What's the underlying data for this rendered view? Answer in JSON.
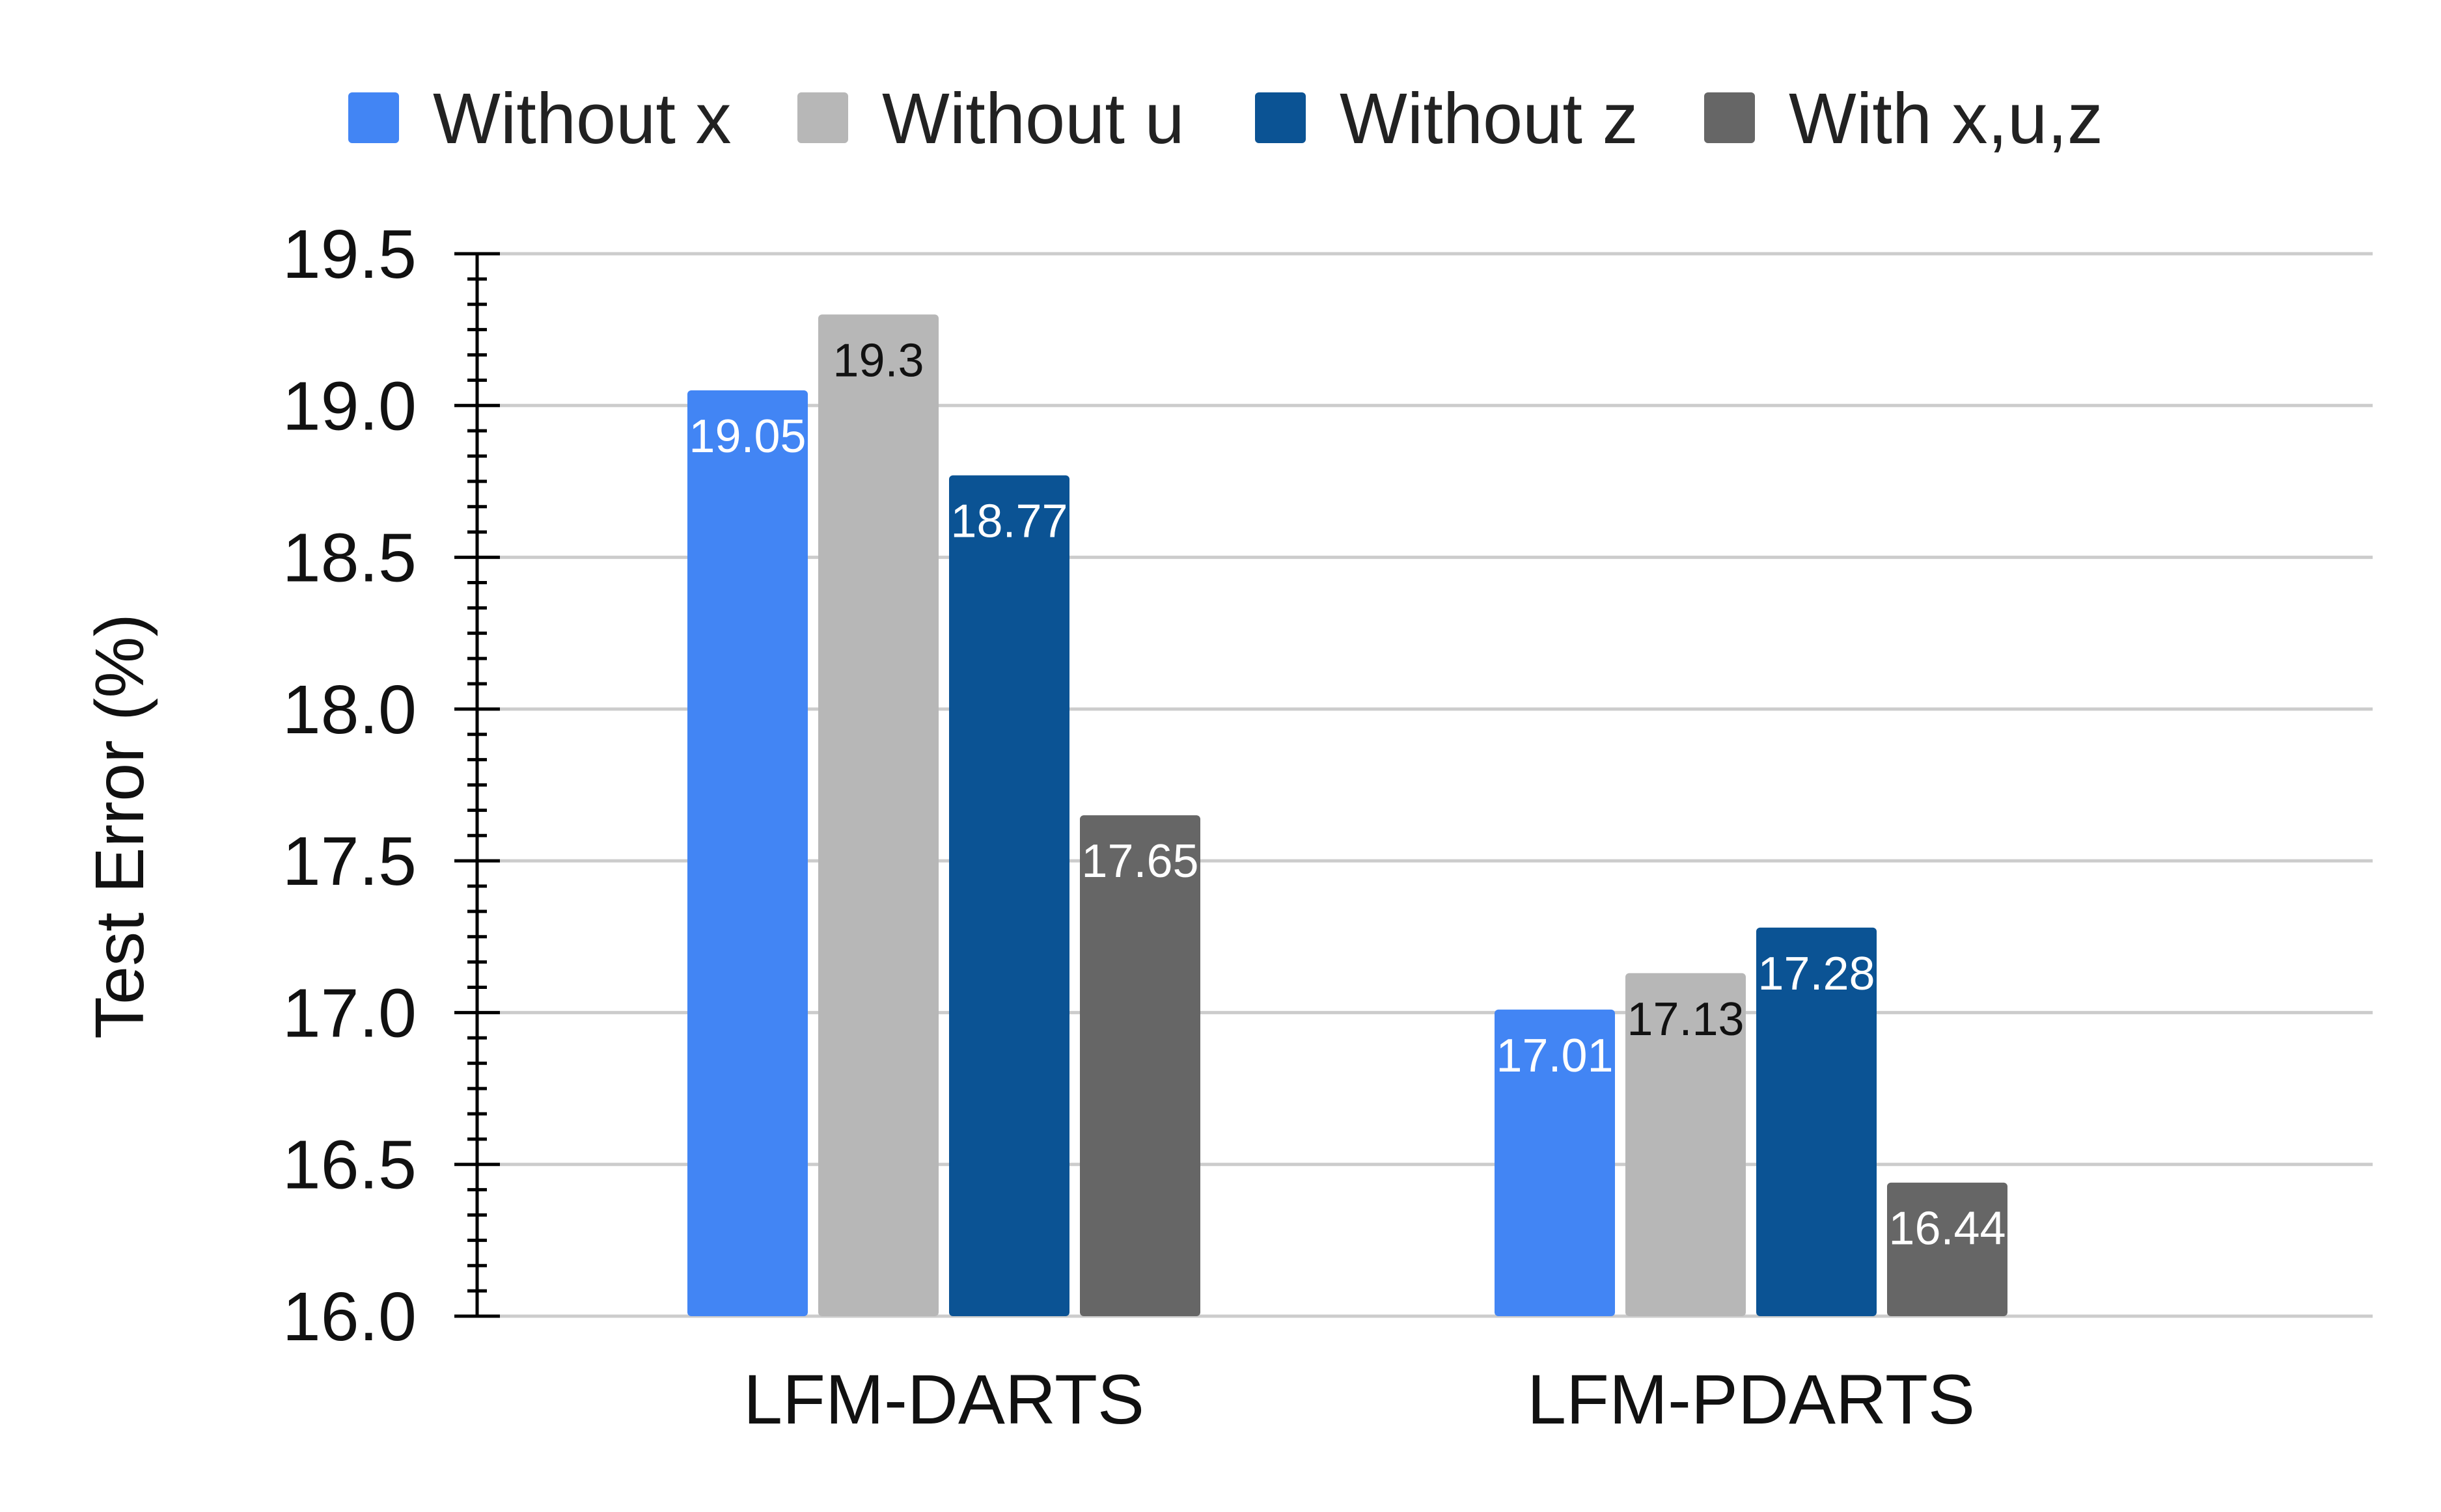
{
  "chart_data": {
    "type": "bar",
    "title": "",
    "xlabel": "",
    "ylabel": "Test Error (%)",
    "ylim": [
      16.0,
      19.5
    ],
    "yticks": [
      "16.0",
      "16.5",
      "17.0",
      "17.5",
      "18.0",
      "18.5",
      "19.0",
      "19.5"
    ],
    "categories": [
      "LFM-DARTS",
      "LFM-PDARTS"
    ],
    "series": [
      {
        "name": "Without x",
        "values": [
          19.05,
          17.01
        ],
        "color": "#4285F4",
        "labels": [
          "19.05",
          "17.01"
        ],
        "label_color": "#ffffff"
      },
      {
        "name": "Without u",
        "values": [
          19.3,
          17.13
        ],
        "color": "#B7B7B7",
        "labels": [
          "19.3",
          "17.13"
        ],
        "label_color": "#111111"
      },
      {
        "name": "Without z",
        "values": [
          18.77,
          17.28
        ],
        "color": "#0B5394",
        "labels": [
          "18.77",
          "17.28"
        ],
        "label_color": "#ffffff"
      },
      {
        "name": "With x,u,z",
        "values": [
          17.65,
          16.44
        ],
        "color": "#666666",
        "labels": [
          "17.65",
          "16.44"
        ],
        "label_color": "#ffffff"
      }
    ],
    "grid": true,
    "legend_position": "top"
  }
}
